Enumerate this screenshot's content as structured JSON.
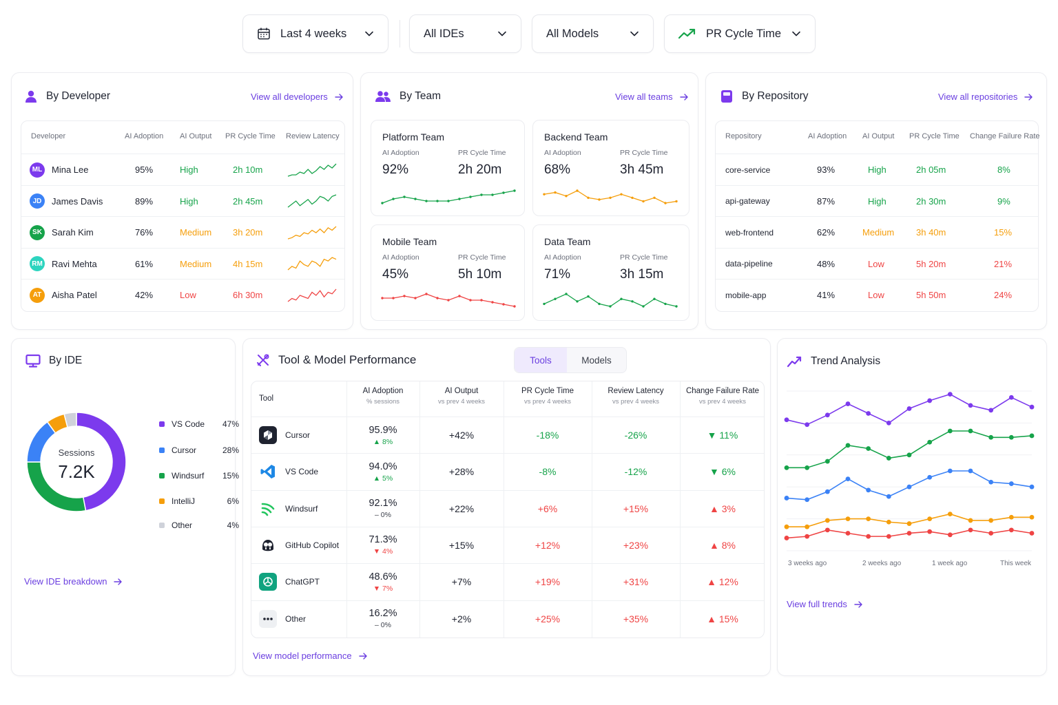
{
  "filters": {
    "date": "Last 4 weeks",
    "ide": "All IDEs",
    "model": "All Models",
    "metric": "PR Cycle Time"
  },
  "developer": {
    "title": "By Developer",
    "link": "View all developers",
    "headers": [
      "Developer",
      "AI Adoption",
      "AI Output",
      "PR Cycle Time",
      "Review Latency"
    ],
    "rows": [
      {
        "initials": "ML",
        "name": "Mina Lee",
        "adoption": "95%",
        "output": "High",
        "cycle": "2h 10m",
        "avatar_color": "#7c3aed",
        "status": "good"
      },
      {
        "initials": "JD",
        "name": "James Davis",
        "adoption": "89%",
        "output": "High",
        "cycle": "2h 45m",
        "avatar_color": "#3b82f6",
        "status": "good"
      },
      {
        "initials": "SK",
        "name": "Sarah Kim",
        "adoption": "76%",
        "output": "Medium",
        "cycle": "3h 20m",
        "avatar_color": "#16a34a",
        "status": "medium"
      },
      {
        "initials": "RM",
        "name": "Ravi Mehta",
        "adoption": "61%",
        "output": "Medium",
        "cycle": "4h 15m",
        "avatar_color": "#2dd4bf",
        "status": "medium"
      },
      {
        "initials": "AT",
        "name": "Aisha Patel",
        "adoption": "42%",
        "output": "Low",
        "cycle": "6h 30m",
        "avatar_color": "#f59e0b",
        "status": "low"
      }
    ]
  },
  "team": {
    "title": "By Team",
    "link": "View all teams",
    "adoption_label": "AI Adoption",
    "cycle_label": "PR Cycle Time",
    "teams": [
      {
        "name": "Platform Team",
        "adoption": "92%",
        "cycle": "2h 20m",
        "color": "#16a34a"
      },
      {
        "name": "Backend Team",
        "adoption": "68%",
        "cycle": "3h 45m",
        "color": "#f59e0b"
      },
      {
        "name": "Mobile Team",
        "adoption": "45%",
        "cycle": "5h 10m",
        "color": "#ef4444"
      },
      {
        "name": "Data Team",
        "adoption": "71%",
        "cycle": "3h 15m",
        "color": "#16a34a"
      }
    ]
  },
  "repo": {
    "title": "By Repository",
    "link": "View all repositories",
    "headers": [
      "Repository",
      "AI Adoption",
      "AI Output",
      "PR Cycle Time",
      "Change Failure Rate"
    ],
    "rows": [
      {
        "name": "core-service",
        "adoption": "93%",
        "output": "High",
        "cycle": "2h 05m",
        "cfr": "8%",
        "status": "good"
      },
      {
        "name": "api-gateway",
        "adoption": "87%",
        "output": "High",
        "cycle": "2h 30m",
        "cfr": "9%",
        "status": "good"
      },
      {
        "name": "web-frontend",
        "adoption": "62%",
        "output": "Medium",
        "cycle": "3h 40m",
        "cfr": "15%",
        "status": "medium"
      },
      {
        "name": "data-pipeline",
        "adoption": "48%",
        "output": "Low",
        "cycle": "5h 20m",
        "cfr": "21%",
        "status": "low"
      },
      {
        "name": "mobile-app",
        "adoption": "41%",
        "output": "Low",
        "cycle": "5h 50m",
        "cfr": "24%",
        "status": "low"
      }
    ]
  },
  "ide": {
    "title": "By IDE",
    "center_label": "Sessions",
    "center_value": "7.2K",
    "link": "View IDE breakdown",
    "items": [
      {
        "name": "VS Code",
        "pct": "47%",
        "value": 47,
        "color": "#7c3aed"
      },
      {
        "name": "Cursor",
        "pct": "28%",
        "value": 28,
        "color": "#16a34a"
      },
      {
        "name": "Windsurf",
        "pct": "15%",
        "value": 15,
        "color": "#3b82f6"
      },
      {
        "name": "IntelliJ",
        "pct": "6%",
        "value": 6,
        "color": "#f59e0b"
      },
      {
        "name": "Other",
        "pct": "4%",
        "value": 4,
        "color": "#cfd2da"
      }
    ],
    "legend_colors": [
      "#7c3aed",
      "#3b82f6",
      "#16a34a",
      "#f59e0b",
      "#cfd2da"
    ]
  },
  "tools": {
    "title": "Tool & Model Performance",
    "tab_active": "Tools",
    "tab_inactive": "Models",
    "headers": {
      "tool": "Tool",
      "adoption": "AI Adoption",
      "adoption_sub": "% sessions",
      "output": "AI Output",
      "output_sub": "vs prev 4 weeks",
      "cycle": "PR Cycle Time",
      "cycle_sub": "vs prev 4 weeks",
      "latency": "Review Latency",
      "latency_sub": "vs prev 4 weeks",
      "cfr": "Change Failure Rate",
      "cfr_sub": "vs prev 4 weeks"
    },
    "rows": [
      {
        "name": "Cursor",
        "icon": "cursor-icon",
        "adoption": "95.9%",
        "delta": "▲ 8%",
        "delta_dir": "up",
        "output": "+42%",
        "cycle": "-18%",
        "latency": "-26%",
        "cfr": "▼ 11%",
        "cfr_dir": "good"
      },
      {
        "name": "VS Code",
        "icon": "vscode-icon",
        "adoption": "94.0%",
        "delta": "▲ 5%",
        "delta_dir": "up",
        "output": "+28%",
        "cycle": "-8%",
        "latency": "-12%",
        "cfr": "▼ 6%",
        "cfr_dir": "good"
      },
      {
        "name": "Windsurf",
        "icon": "windsurf-icon",
        "adoption": "92.1%",
        "delta": "– 0%",
        "delta_dir": "flat",
        "output": "+22%",
        "cycle": "+6%",
        "latency": "+15%",
        "cfr": "▲ 3%",
        "cfr_dir": "bad"
      },
      {
        "name": "GitHub Copilot",
        "icon": "copilot-icon",
        "adoption": "71.3%",
        "delta": "▼ 4%",
        "delta_dir": "down",
        "output": "+15%",
        "cycle": "+12%",
        "latency": "+23%",
        "cfr": "▲ 8%",
        "cfr_dir": "bad"
      },
      {
        "name": "ChatGPT",
        "icon": "chatgpt-icon",
        "adoption": "48.6%",
        "delta": "▼ 7%",
        "delta_dir": "down",
        "output": "+7%",
        "cycle": "+19%",
        "latency": "+31%",
        "cfr": "▲ 12%",
        "cfr_dir": "bad"
      },
      {
        "name": "Other",
        "icon": "more-icon",
        "adoption": "16.2%",
        "delta": "– 0%",
        "delta_dir": "flat",
        "output": "+2%",
        "cycle": "+25%",
        "latency": "+35%",
        "cfr": "▲ 15%",
        "cfr_dir": "bad"
      }
    ],
    "link": "View model performance"
  },
  "trend": {
    "title": "Trend Analysis",
    "link": "View full trends"
  },
  "chart_data": {
    "type": "line",
    "title": "",
    "x_labels": [
      "3 weeks ago",
      "2 weeks ago",
      "1 week ago",
      "This week"
    ],
    "points_per_series": 13,
    "ylim": [
      0,
      100
    ],
    "grid": true,
    "series": [
      {
        "color": "#7c3aed",
        "values": [
          82,
          79,
          85,
          92,
          86,
          80,
          89,
          94,
          98,
          91,
          88,
          96,
          90
        ]
      },
      {
        "color": "#16a34a",
        "values": [
          52,
          52,
          56,
          66,
          64,
          58,
          60,
          68,
          75,
          75,
          71,
          71,
          72
        ]
      },
      {
        "color": "#3b82f6",
        "values": [
          33,
          32,
          37,
          45,
          38,
          34,
          40,
          46,
          50,
          50,
          43,
          42,
          40
        ]
      },
      {
        "color": "#f59e0b",
        "values": [
          15,
          15,
          19,
          20,
          20,
          18,
          17,
          20,
          23,
          19,
          19,
          21,
          21
        ]
      },
      {
        "color": "#ef4444",
        "values": [
          8,
          9,
          13,
          11,
          9,
          9,
          11,
          12,
          10,
          13,
          11,
          13,
          11
        ]
      }
    ]
  },
  "sparklines": {
    "developer": [
      {
        "color": "#16a34a",
        "values": [
          2,
          3,
          3,
          5,
          4,
          7,
          4,
          6,
          9,
          7,
          10,
          8,
          11
        ]
      },
      {
        "color": "#16a34a",
        "values": [
          2,
          4,
          6,
          3,
          5,
          7,
          4,
          6,
          9,
          8,
          6,
          9,
          10
        ]
      },
      {
        "color": "#f59e0b",
        "values": [
          2,
          3,
          5,
          4,
          7,
          6,
          9,
          7,
          10,
          7,
          11,
          9,
          12
        ]
      },
      {
        "color": "#f59e0b",
        "values": [
          3,
          5,
          4,
          8,
          6,
          5,
          8,
          7,
          5,
          9,
          8,
          10,
          9
        ]
      },
      {
        "color": "#ef4444",
        "values": [
          2,
          4,
          3,
          6,
          5,
          4,
          8,
          6,
          9,
          5,
          8,
          7,
          10
        ]
      }
    ],
    "team": [
      {
        "color": "#16a34a",
        "values": [
          3,
          5,
          6,
          5,
          4,
          4,
          4,
          5,
          6,
          7,
          7,
          8,
          9
        ]
      },
      {
        "color": "#f59e0b",
        "values": [
          7,
          8,
          6,
          9,
          5,
          4,
          5,
          7,
          5,
          3,
          5,
          2,
          3
        ]
      },
      {
        "color": "#ef4444",
        "values": [
          6,
          6,
          7,
          6,
          8,
          6,
          5,
          7,
          5,
          5,
          4,
          3,
          2
        ]
      },
      {
        "color": "#16a34a",
        "values": [
          4,
          6,
          8,
          5,
          7,
          4,
          3,
          6,
          5,
          3,
          6,
          4,
          3
        ]
      }
    ]
  }
}
